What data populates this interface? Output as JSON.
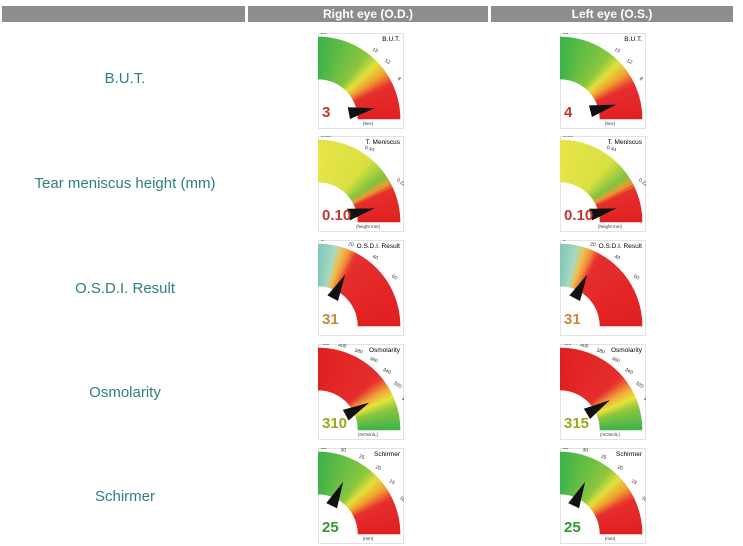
{
  "header": {
    "right_eye": "Right eye (O.D.)",
    "left_eye": "Left eye (O.S.)"
  },
  "rows": [
    {
      "label": "B.U.T."
    },
    {
      "label": "Tear meniscus height (mm)"
    },
    {
      "label": "O.S.D.I. Result"
    },
    {
      "label": "Osmolarity"
    },
    {
      "label": "Schirmer"
    }
  ],
  "chart_data": [
    {
      "type": "gauge",
      "title": "B.U.T.",
      "unit": "(Sec)",
      "ticks": [
        "25",
        "15",
        "12",
        "8",
        "4",
        "0"
      ],
      "tick_values": [
        25,
        15,
        12,
        8,
        4,
        0
      ],
      "colors": "green-to-red",
      "values": {
        "right_eye": 3,
        "left_eye": 4
      },
      "value_labels": {
        "right_eye": "3",
        "left_eye": "4"
      },
      "value_color": "#c0392b"
    },
    {
      "type": "gauge",
      "title": "T. Meniscus",
      "unit": "(height mm)",
      "ticks": [
        "0.66",
        "0.44",
        "0.22",
        "0.00"
      ],
      "tick_values": [
        0.66,
        0.44,
        0.22,
        0.0
      ],
      "colors": "yellow-green-red",
      "values": {
        "right_eye": 0.1,
        "left_eye": 0.1
      },
      "value_labels": {
        "right_eye": "0.10",
        "left_eye": "0.10"
      },
      "value_color": "#c0392b"
    },
    {
      "type": "gauge",
      "title": "O.S.D.I. Result",
      "unit": "",
      "ticks": [
        "0",
        "20",
        "40",
        "60",
        "80",
        "100"
      ],
      "tick_values": [
        0,
        20,
        40,
        60,
        80,
        100
      ],
      "colors": "teal-to-red",
      "values": {
        "right_eye": 31,
        "left_eye": 31
      },
      "value_labels": {
        "right_eye": "31",
        "left_eye": "31"
      },
      "value_color": "#c58a3a"
    },
    {
      "type": "gauge",
      "title": "Osmolarity",
      "unit": "(mOsm/L)",
      "ticks": [
        "420",
        "400",
        "380",
        "360",
        "340",
        "320",
        "300",
        "280",
        "260"
      ],
      "tick_values": [
        420,
        400,
        380,
        360,
        340,
        320,
        300,
        280,
        260
      ],
      "colors": "red-to-green",
      "values": {
        "right_eye": 310,
        "left_eye": 315
      },
      "value_labels": {
        "right_eye": "310",
        "left_eye": "315"
      },
      "value_color": "#8fae1b"
    },
    {
      "type": "gauge",
      "title": "Schirmer",
      "unit": "(mm)",
      "ticks": [
        "35",
        "30",
        "25",
        "20",
        "15",
        "10",
        "5",
        "0"
      ],
      "tick_values": [
        35,
        30,
        25,
        20,
        15,
        10,
        5,
        0
      ],
      "colors": "green-to-red",
      "values": {
        "right_eye": 25,
        "left_eye": 25
      },
      "value_labels": {
        "right_eye": "25",
        "left_eye": "25"
      },
      "value_color": "#2f9a2f"
    }
  ]
}
